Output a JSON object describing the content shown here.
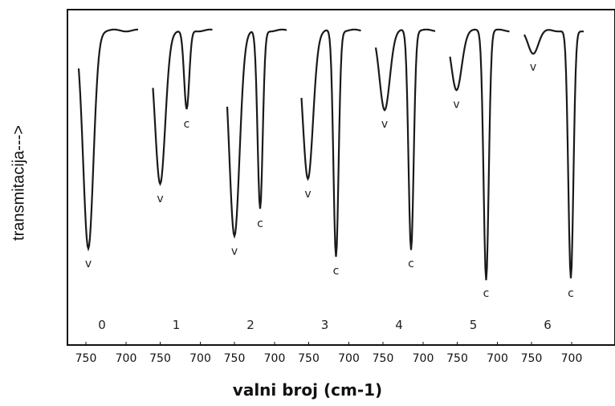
{
  "chart_data": {
    "type": "line",
    "xlabel": "valni broj (cm-1)",
    "ylabel": "transmitacija--->",
    "x_tick_labels": [
      "750",
      "700"
    ],
    "x_direction": "decreasing",
    "peak_label_v": "v",
    "peak_label_c": "c",
    "panels": [
      {
        "label": "0",
        "peaks": [
          {
            "type": "v",
            "x": 747,
            "depth": 0.88
          }
        ]
      },
      {
        "label": "1",
        "peaks": [
          {
            "type": "v",
            "x": 750,
            "depth": 0.62
          },
          {
            "type": "c",
            "x": 717,
            "depth": 0.32
          }
        ]
      },
      {
        "label": "2",
        "peaks": [
          {
            "type": "v",
            "x": 750,
            "depth": 0.83
          },
          {
            "type": "c",
            "x": 718,
            "depth": 0.72
          }
        ]
      },
      {
        "label": "3",
        "peaks": [
          {
            "type": "v",
            "x": 751,
            "depth": 0.6
          },
          {
            "type": "c",
            "x": 716,
            "depth": 0.91
          }
        ]
      },
      {
        "label": "4",
        "peaks": [
          {
            "type": "v",
            "x": 748,
            "depth": 0.32
          },
          {
            "type": "c",
            "x": 715,
            "depth": 0.88
          }
        ]
      },
      {
        "label": "5",
        "peaks": [
          {
            "type": "v",
            "x": 751,
            "depth": 0.24
          },
          {
            "type": "c",
            "x": 714,
            "depth": 1.0
          }
        ]
      },
      {
        "label": "6",
        "peaks": [
          {
            "type": "v",
            "x": 748,
            "depth": 0.09
          },
          {
            "type": "c",
            "x": 701,
            "depth": 1.0
          }
        ]
      }
    ]
  }
}
